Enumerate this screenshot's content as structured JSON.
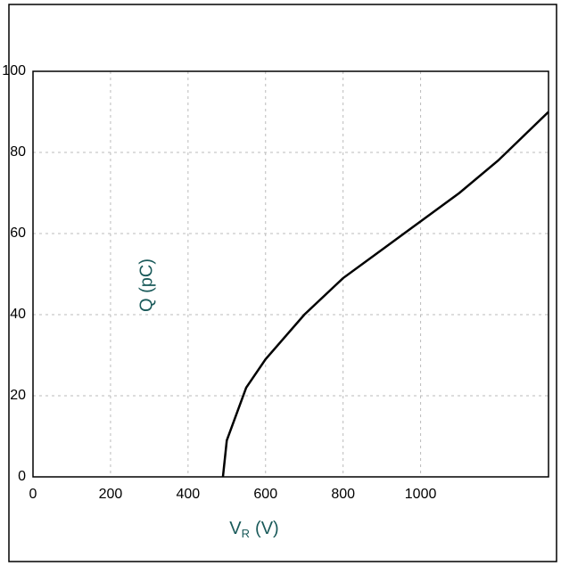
{
  "chart_data": {
    "type": "line",
    "x_label": "V",
    "x_label_sub": "R",
    "x_label_unit": "(V)",
    "y_label": "Q (pC)",
    "x": [
      490,
      500,
      550,
      600,
      700,
      800,
      900,
      1000,
      1100,
      1200,
      1330
    ],
    "series": [
      {
        "color": "#000000",
        "values": [
          0,
          9,
          22,
          29,
          40,
          49,
          56,
          63,
          70,
          78,
          90
        ]
      }
    ],
    "xlim": [
      0,
      1330
    ],
    "ylim": [
      0,
      100
    ],
    "xticks": [
      0,
      200,
      400,
      600,
      800,
      1000
    ],
    "yticks": [
      0,
      20,
      40,
      60,
      80,
      100
    ],
    "grid": true
  }
}
